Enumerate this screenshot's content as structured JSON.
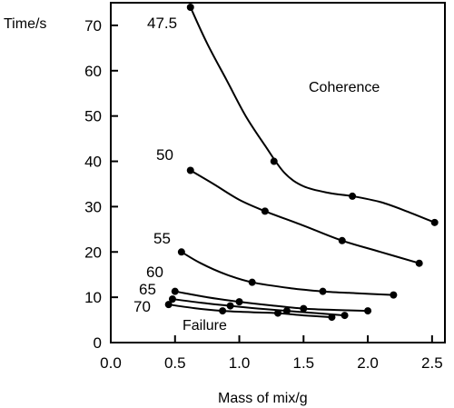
{
  "chart_data": {
    "type": "line",
    "xlabel": "Mass of mix/g",
    "ylabel": "Time/s",
    "xlim": [
      0,
      2.6
    ],
    "ylim": [
      0,
      75
    ],
    "xticks": [
      "0.0",
      "0.5",
      "1.0",
      "1.5",
      "2.0",
      "2.5"
    ],
    "yticks": [
      "0",
      "10",
      "20",
      "30",
      "40",
      "50",
      "60",
      "70"
    ],
    "grid": false,
    "legend": "none",
    "annotations": {
      "upper_region": "Coherence",
      "lower_region": "Failure"
    },
    "series": [
      {
        "name": "47.5",
        "points": [
          [
            0.62,
            74
          ],
          [
            1.27,
            40
          ],
          [
            1.88,
            32.3
          ],
          [
            2.52,
            26.5
          ]
        ],
        "curve": [
          [
            0.62,
            74
          ],
          [
            0.75,
            66
          ],
          [
            0.9,
            58
          ],
          [
            1.05,
            50
          ],
          [
            1.2,
            43.5
          ],
          [
            1.35,
            37.5
          ],
          [
            1.5,
            34.5
          ],
          [
            1.7,
            33
          ],
          [
            1.88,
            32.3
          ],
          [
            2.1,
            31
          ],
          [
            2.3,
            29
          ],
          [
            2.52,
            26.5
          ]
        ]
      },
      {
        "name": "50",
        "points": [
          [
            0.62,
            38
          ],
          [
            1.2,
            29
          ],
          [
            1.8,
            22.5
          ],
          [
            2.4,
            17.5
          ]
        ],
        "curve": [
          [
            0.62,
            38
          ],
          [
            0.8,
            35
          ],
          [
            1.0,
            31.5
          ],
          [
            1.2,
            29
          ],
          [
            1.5,
            25.8
          ],
          [
            1.8,
            22.5
          ],
          [
            2.1,
            20
          ],
          [
            2.4,
            17.5
          ]
        ]
      },
      {
        "name": "55",
        "points": [
          [
            0.55,
            20
          ],
          [
            1.1,
            13.3
          ],
          [
            1.65,
            11.3
          ],
          [
            2.2,
            10.5
          ]
        ],
        "curve": [
          [
            0.55,
            20
          ],
          [
            0.7,
            17.5
          ],
          [
            0.9,
            15
          ],
          [
            1.1,
            13.3
          ],
          [
            1.4,
            12
          ],
          [
            1.65,
            11.3
          ],
          [
            1.9,
            10.9
          ],
          [
            2.2,
            10.5
          ]
        ]
      },
      {
        "name": "60",
        "points": [
          [
            0.5,
            11.3
          ],
          [
            1.0,
            9
          ],
          [
            1.5,
            7.5
          ],
          [
            2.0,
            7
          ]
        ],
        "curve": [
          [
            0.5,
            11.3
          ],
          [
            0.75,
            10
          ],
          [
            1.0,
            9
          ],
          [
            1.25,
            8.2
          ],
          [
            1.5,
            7.5
          ],
          [
            1.75,
            7.2
          ],
          [
            2.0,
            7
          ]
        ]
      },
      {
        "name": "65",
        "points": [
          [
            0.48,
            9.6
          ],
          [
            0.93,
            8.1
          ],
          [
            1.37,
            7
          ],
          [
            1.82,
            6
          ]
        ],
        "curve": [
          [
            0.48,
            9.6
          ],
          [
            0.7,
            8.8
          ],
          [
            0.93,
            8.1
          ],
          [
            1.15,
            7.5
          ],
          [
            1.37,
            7
          ],
          [
            1.6,
            6.5
          ],
          [
            1.82,
            6
          ]
        ]
      },
      {
        "name": "70",
        "points": [
          [
            0.45,
            8.4
          ],
          [
            0.87,
            7
          ],
          [
            1.3,
            6.5
          ],
          [
            1.72,
            5.6
          ]
        ],
        "curve": [
          [
            0.45,
            8.4
          ],
          [
            0.65,
            7.6
          ],
          [
            0.87,
            7
          ],
          [
            1.1,
            6.7
          ],
          [
            1.3,
            6.5
          ],
          [
            1.5,
            6
          ],
          [
            1.72,
            5.6
          ]
        ]
      }
    ]
  }
}
